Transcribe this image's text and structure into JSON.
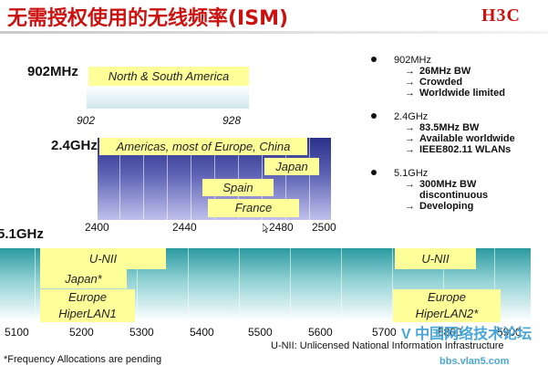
{
  "header": {
    "title": "无需授权使用的无线频率(ISM)",
    "logo": "H3C"
  },
  "bands": {
    "b902": {
      "label": "902MHz",
      "allocations": [
        "North & South America"
      ],
      "ticks": [
        "902",
        "928"
      ]
    },
    "b24": {
      "label": "2.4GHz",
      "allocations": [
        "Americas, most of Europe, China",
        "Japan",
        "Spain",
        "France"
      ],
      "ticks": [
        "2400",
        "2440",
        "2480",
        "2500"
      ]
    },
    "b51": {
      "label": "5.1GHz",
      "allocations": [
        "U-NII",
        "Japan*",
        "Europe",
        "HiperLAN1",
        "U-NII",
        "Europe",
        "HiperLAN2*"
      ],
      "ticks": [
        "5100",
        "5200",
        "5300",
        "5400",
        "5500",
        "5600",
        "5700",
        "5800",
        "5900"
      ]
    }
  },
  "notes": [
    {
      "head": "902MHz",
      "items": [
        "26MHz BW",
        "Crowded",
        "Worldwide limited"
      ]
    },
    {
      "head": "2.4GHz",
      "items": [
        "83.5MHz BW",
        "Available worldwide",
        "IEEE802.11 WLANs"
      ]
    },
    {
      "head": "5.1GHz",
      "items": [
        "300MHz BW",
        "Developing"
      ],
      "continuation": "discontinuous"
    }
  ],
  "arrow_glyph": "→",
  "footnote": "*Frequency Allocations are pending",
  "unii_definition": "U-NII: Unlicensed National Information Infrastructure",
  "watermark": {
    "text": "V 中国网络技术论坛",
    "url": "bbs.vlan5.com"
  }
}
